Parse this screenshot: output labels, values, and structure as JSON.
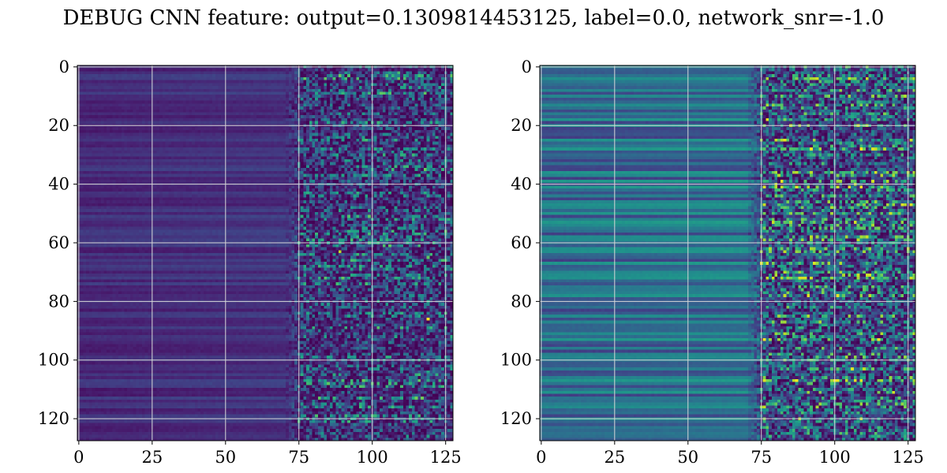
{
  "suptitle": "DEBUG CNN feature: output=0.1309814453125, label=0.0, network_snr=-1.0",
  "chart_data": [
    {
      "type": "heatmap",
      "title": "",
      "xlabel": "",
      "ylabel": "",
      "rows": 128,
      "cols": 128,
      "xlim": [
        -0.5,
        127.5
      ],
      "ylim": [
        127.5,
        -0.5
      ],
      "x_ticks": [
        0,
        25,
        50,
        75,
        100,
        125
      ],
      "y_ticks": [
        0,
        20,
        40,
        60,
        80,
        100,
        120
      ],
      "grid": true,
      "colormap": "viridis",
      "description_of_values": "normalized intensity 0-1; low uniform values for columns 0-70, noisy higher values for columns 75-127",
      "structure": {
        "smooth_region_cols": [
          0,
          70
        ],
        "noisy_region_cols": [
          75,
          127
        ],
        "smooth_level": 0.12,
        "noise_level": 0.35,
        "hotspots": [
          {
            "row": 2,
            "col": 109,
            "value": 0.7
          },
          {
            "row": 63,
            "col": 89,
            "value": 0.9
          },
          {
            "row": 65,
            "col": 119,
            "value": 0.75
          },
          {
            "row": 86,
            "col": 119,
            "value": 1.0
          },
          {
            "row": 43,
            "col": 88,
            "value": 0.6
          },
          {
            "row": 104,
            "col": 119,
            "value": 0.6
          }
        ]
      }
    },
    {
      "type": "heatmap",
      "title": "",
      "xlabel": "",
      "ylabel": "",
      "rows": 128,
      "cols": 128,
      "xlim": [
        -0.5,
        127.5
      ],
      "ylim": [
        127.5,
        -0.5
      ],
      "x_ticks": [
        0,
        25,
        50,
        75,
        100,
        125
      ],
      "y_ticks": [
        0,
        20,
        40,
        60,
        80,
        100,
        120
      ],
      "grid": true,
      "colormap": "viridis",
      "description_of_values": "normalized intensity 0-1; horizontal banded structure in columns 0-70, noisy higher values for columns 75-127",
      "structure": {
        "smooth_region_cols": [
          0,
          70
        ],
        "noisy_region_cols": [
          75,
          127
        ],
        "smooth_level": 0.35,
        "noise_level": 0.45,
        "hotspots": [
          {
            "row": 40,
            "col": 80,
            "value": 0.9
          },
          {
            "row": 40,
            "col": 107,
            "value": 0.9
          },
          {
            "row": 52,
            "col": 89,
            "value": 0.8
          },
          {
            "row": 82,
            "col": 84,
            "value": 0.8
          },
          {
            "row": 103,
            "col": 106,
            "value": 0.95
          },
          {
            "row": 103,
            "col": 110,
            "value": 0.9
          },
          {
            "row": 115,
            "col": 95,
            "value": 0.85
          },
          {
            "row": 93,
            "col": 98,
            "value": 0.8
          }
        ]
      }
    }
  ],
  "colors": {
    "viridis_low": "#440154",
    "viridis_mid": "#21918c",
    "viridis_high": "#fde725",
    "grid": "#d8d8d8"
  }
}
